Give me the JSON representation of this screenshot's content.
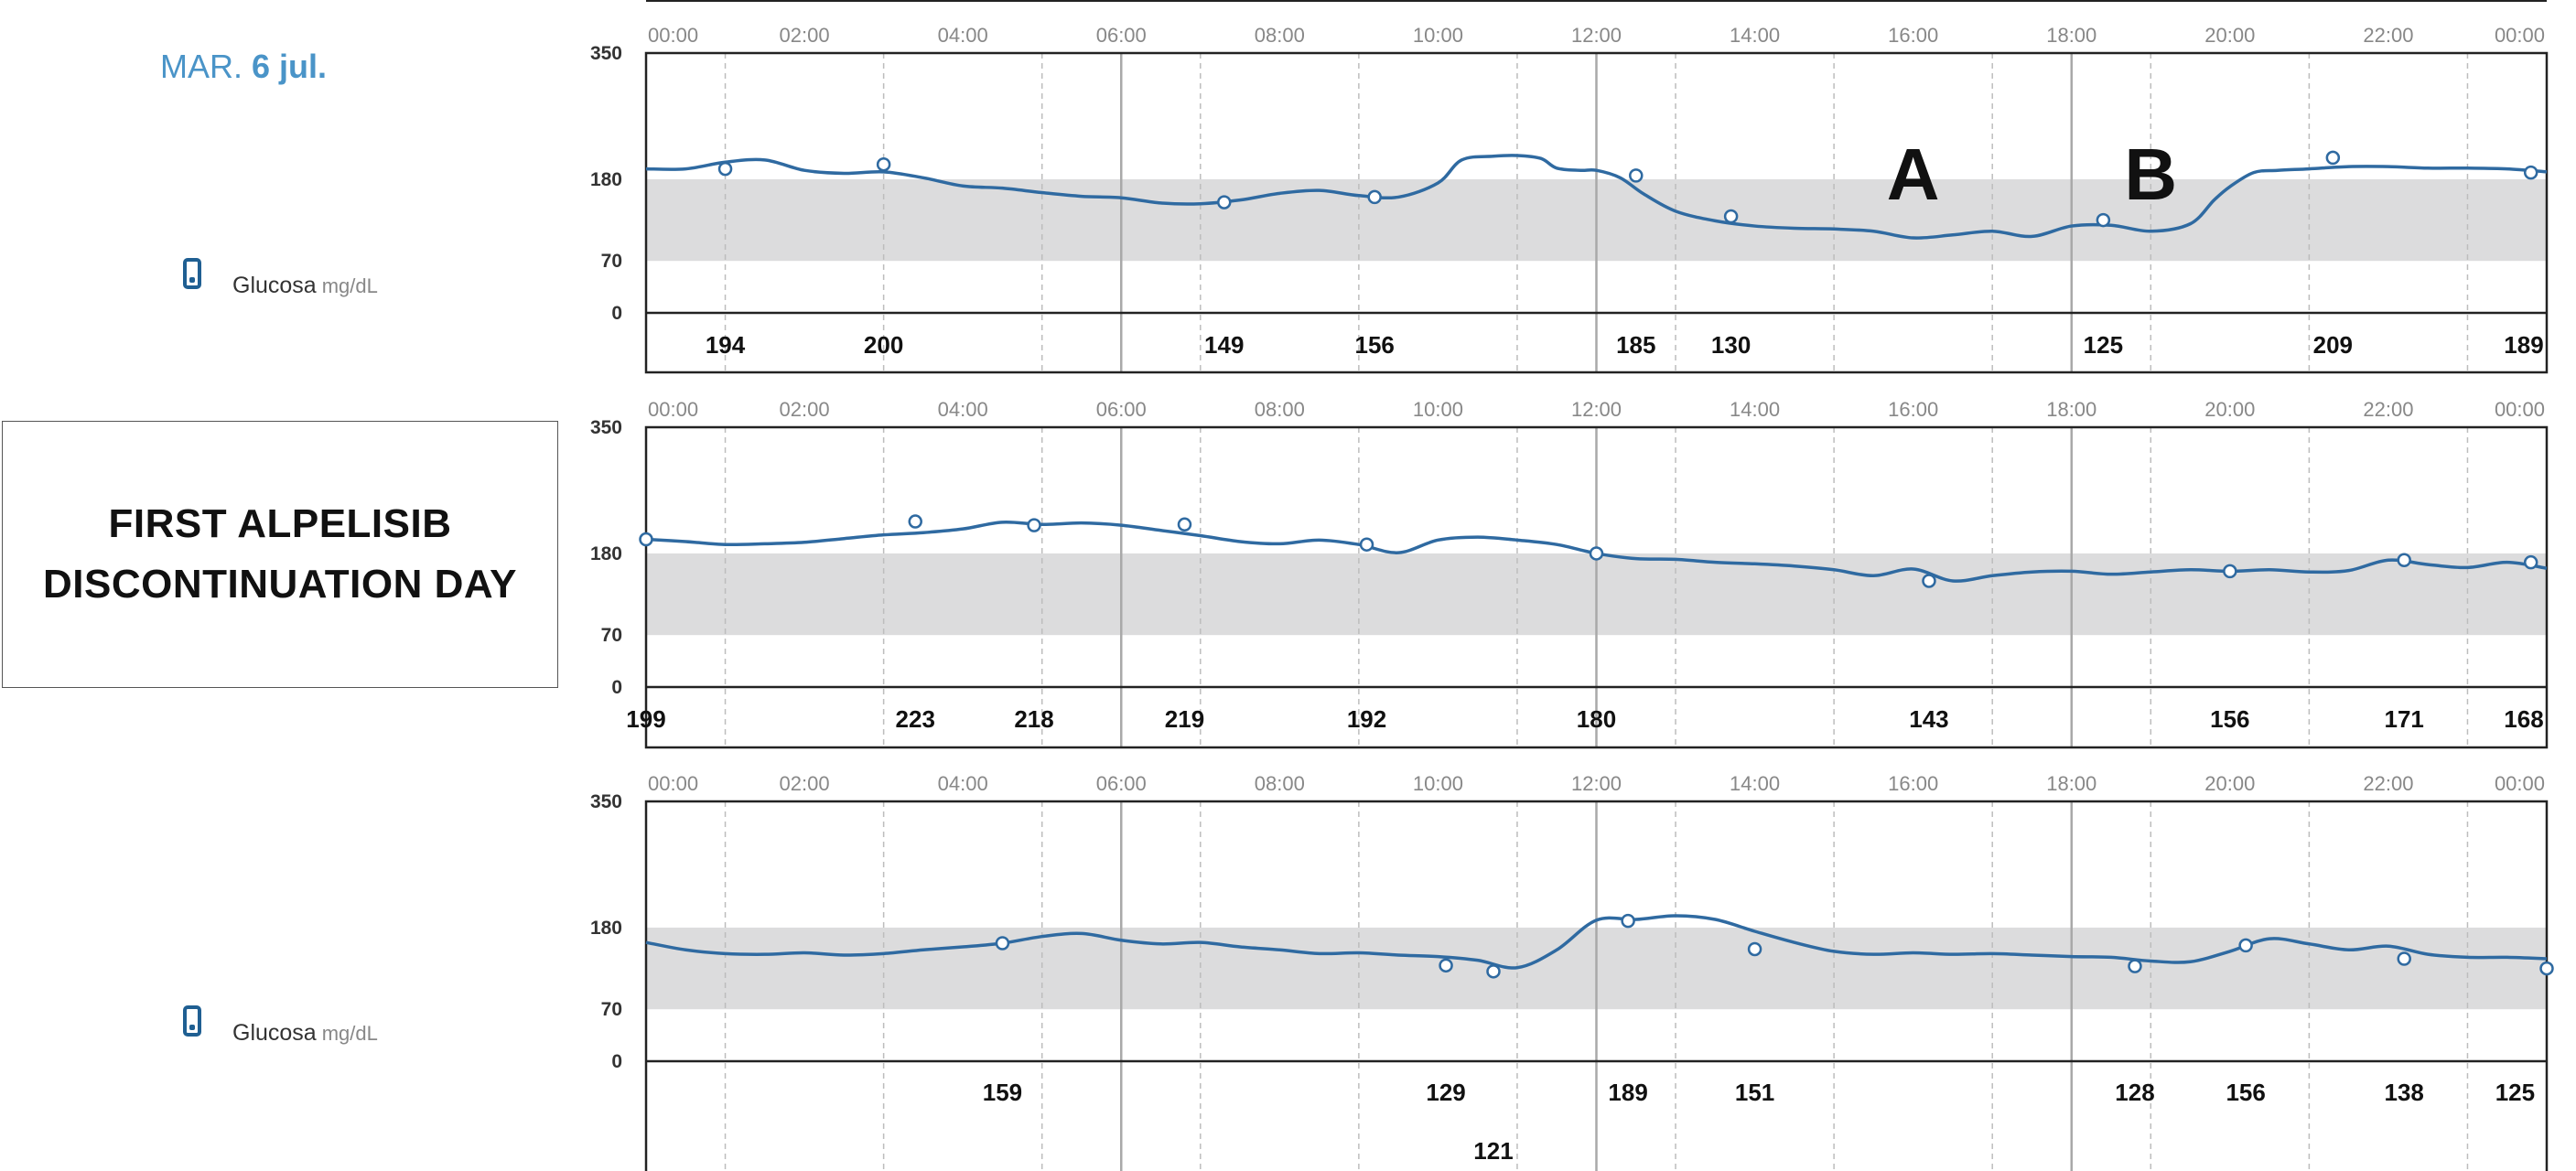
{
  "header": {
    "date_prefix": "MAR.",
    "date_day": "6 jul."
  },
  "legend": {
    "label": "Glucosa",
    "unit": "mg/dL",
    "icon": "phone-icon"
  },
  "note_box": {
    "line1": "FIRST ALPELISIB",
    "line2": "DISCONTINUATION DAY"
  },
  "colors": {
    "line": "#2f6aa1",
    "target_band": "#dcdcdd",
    "axis": "#222222",
    "grid": "#bdbdbd"
  },
  "chart_data": [
    {
      "type": "line",
      "x_ticks": [
        "00:00",
        "02:00",
        "04:00",
        "06:00",
        "08:00",
        "10:00",
        "12:00",
        "14:00",
        "16:00",
        "18:00",
        "20:00",
        "22:00",
        "00:00"
      ],
      "y_ticks": [
        "350",
        "180",
        "70",
        "0"
      ],
      "xlim": [
        0,
        24
      ],
      "target_range": [
        70,
        180
      ],
      "series": [
        {
          "x": [
            0,
            0.5,
            1,
            1.5,
            2,
            2.5,
            3,
            3.5,
            4,
            4.5,
            5,
            5.5,
            6,
            6.5,
            7,
            7.5,
            8,
            8.5,
            9,
            9.5,
            10,
            10.3,
            10.7,
            11,
            11.3,
            11.5,
            11.8,
            12,
            12.3,
            12.6,
            13,
            13.5,
            14,
            14.5,
            15,
            15.5,
            16,
            16.5,
            17,
            17.5,
            18,
            18.5,
            19,
            19.5,
            19.8,
            20,
            20.3,
            20.6,
            21,
            21.5,
            22,
            22.5,
            23,
            23.5,
            24
          ],
          "y": [
            194,
            194,
            203,
            206,
            192,
            188,
            190,
            182,
            171,
            168,
            162,
            157,
            155,
            148,
            147,
            152,
            161,
            165,
            158,
            156,
            175,
            206,
            211,
            212,
            208,
            195,
            192,
            192,
            182,
            160,
            137,
            124,
            117,
            114,
            113,
            110,
            101,
            105,
            110,
            103,
            117,
            118,
            110,
            120,
            152,
            170,
            189,
            192,
            194,
            197,
            197,
            195,
            195,
            194,
            190
          ]
        }
      ],
      "markers": [
        {
          "x": 1,
          "y": 194
        },
        {
          "x": 3,
          "y": 200
        },
        {
          "x": 7.3,
          "y": 149
        },
        {
          "x": 9.2,
          "y": 156
        },
        {
          "x": 12.5,
          "y": 185
        },
        {
          "x": 13.7,
          "y": 130
        },
        {
          "x": 18.4,
          "y": 125
        },
        {
          "x": 21.3,
          "y": 209
        },
        {
          "x": 23.8,
          "y": 189
        }
      ],
      "value_labels": [
        [
          "194",
          "200",
          "149",
          "156",
          "185",
          "130",
          "125",
          "209",
          "189"
        ]
      ],
      "annotations": [
        {
          "text": "A",
          "x": 16
        },
        {
          "text": "B",
          "x": 19
        }
      ]
    },
    {
      "type": "line",
      "x_ticks": [
        "00:00",
        "02:00",
        "04:00",
        "06:00",
        "08:00",
        "10:00",
        "12:00",
        "14:00",
        "16:00",
        "18:00",
        "20:00",
        "22:00",
        "00:00"
      ],
      "y_ticks": [
        "350",
        "180",
        "70",
        "0"
      ],
      "xlim": [
        0,
        24
      ],
      "target_range": [
        70,
        180
      ],
      "series": [
        {
          "x": [
            0,
            0.5,
            1,
            1.5,
            2,
            2.5,
            3,
            3.5,
            4,
            4.5,
            5,
            5.5,
            6,
            6.5,
            7,
            7.5,
            8,
            8.5,
            9,
            9.5,
            10,
            10.5,
            11,
            11.5,
            12,
            12.5,
            13,
            13.5,
            14,
            14.5,
            15,
            15.5,
            16,
            16.5,
            17,
            17.5,
            18,
            18.5,
            19,
            19.5,
            20,
            20.5,
            21,
            21.5,
            22,
            22.5,
            23,
            23.5,
            24
          ],
          "y": [
            199,
            196,
            192,
            193,
            195,
            200,
            205,
            208,
            213,
            222,
            219,
            221,
            218,
            211,
            204,
            196,
            193,
            198,
            192,
            181,
            198,
            202,
            198,
            192,
            180,
            173,
            172,
            168,
            166,
            163,
            158,
            150,
            159,
            143,
            150,
            155,
            156,
            152,
            155,
            158,
            156,
            158,
            155,
            157,
            171,
            165,
            161,
            168,
            160
          ],
          "cont": true
        }
      ],
      "markers": [
        {
          "x": 0,
          "y": 199
        },
        {
          "x": 3.4,
          "y": 223
        },
        {
          "x": 4.9,
          "y": 218
        },
        {
          "x": 6.8,
          "y": 219
        },
        {
          "x": 9.1,
          "y": 192
        },
        {
          "x": 12,
          "y": 180
        },
        {
          "x": 16.2,
          "y": 143
        },
        {
          "x": 20,
          "y": 156
        },
        {
          "x": 22.2,
          "y": 171
        },
        {
          "x": 23.8,
          "y": 168
        }
      ],
      "value_labels": [
        [
          "199",
          "223",
          "218",
          "219",
          "192",
          "180",
          "143",
          "156",
          "171",
          "168"
        ]
      ]
    },
    {
      "type": "line",
      "x_ticks": [
        "00:00",
        "02:00",
        "04:00",
        "06:00",
        "08:00",
        "10:00",
        "12:00",
        "14:00",
        "16:00",
        "18:00",
        "20:00",
        "22:00",
        "00:00"
      ],
      "y_ticks": [
        "350",
        "180",
        "70",
        "0"
      ],
      "xlim": [
        0,
        24
      ],
      "target_range": [
        70,
        180
      ],
      "series": [
        {
          "x": [
            0,
            0.5,
            1,
            1.5,
            2,
            2.5,
            3,
            3.5,
            4,
            4.5,
            5,
            5.5,
            6,
            6.5,
            7,
            7.5,
            8,
            8.5,
            9,
            9.5,
            10,
            10.5,
            11,
            11.5,
            12,
            12.5,
            13,
            13.5,
            14,
            14.5,
            15,
            15.5,
            16,
            16.5,
            17,
            17.5,
            18,
            18.5,
            19,
            19.5,
            20,
            20.5,
            21,
            21.5,
            22,
            22.5,
            23,
            23.5,
            24
          ],
          "y": [
            160,
            150,
            145,
            144,
            146,
            143,
            145,
            150,
            154,
            159,
            168,
            172,
            163,
            158,
            160,
            154,
            150,
            145,
            146,
            143,
            141,
            136,
            126,
            150,
            190,
            191,
            196,
            191,
            175,
            160,
            148,
            144,
            146,
            144,
            145,
            143,
            141,
            140,
            135,
            134,
            148,
            165,
            158,
            150,
            155,
            144,
            140,
            140,
            138
          ]
        }
      ],
      "markers": [
        {
          "x": 4.5,
          "y": 159
        },
        {
          "x": 10.1,
          "y": 129
        },
        {
          "x": 10.7,
          "y": 121
        },
        {
          "x": 12.4,
          "y": 189
        },
        {
          "x": 14,
          "y": 151
        },
        {
          "x": 18.8,
          "y": 128
        },
        {
          "x": 20.2,
          "y": 156
        },
        {
          "x": 22.2,
          "y": 138
        },
        {
          "x": 24,
          "y": 125
        }
      ],
      "value_labels": [
        [
          "159",
          "129",
          "189",
          "151",
          "128",
          "156",
          "138",
          "125"
        ],
        [
          "121"
        ]
      ]
    }
  ]
}
